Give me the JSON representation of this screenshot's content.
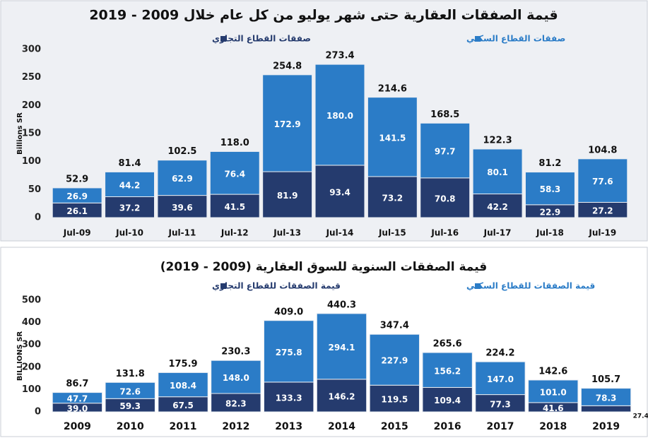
{
  "chart_data": [
    {
      "type": "stacked_bar",
      "title": "قيمة الصفقات العقارية حتى شهر يوليو من كل عام خلال 2009 - 2019",
      "y_label": "Billions SR",
      "categories": [
        "Jul-09",
        "Jul-10",
        "Jul-11",
        "Jul-12",
        "Jul-13",
        "Jul-14",
        "Jul-15",
        "Jul-16",
        "Jul-17",
        "Jul-18",
        "Jul-19"
      ],
      "series": [
        {
          "name": "صفقات القطاع التجاري",
          "color": "#253b6e",
          "values": [
            26.1,
            37.2,
            39.6,
            41.5,
            81.9,
            93.4,
            73.2,
            70.8,
            42.2,
            22.9,
            27.2
          ],
          "value_labels": [
            "26.1",
            "37.2",
            "39.6",
            "41.5",
            "81.9",
            "93.4",
            "73.2",
            "70.8",
            "42.2",
            "22.9",
            "27.2"
          ]
        },
        {
          "name": "صفقات القطاع السكني",
          "color": "#2b7cc7",
          "values": [
            26.9,
            44.2,
            62.9,
            76.4,
            172.9,
            180.0,
            141.5,
            97.7,
            80.1,
            58.3,
            77.6
          ],
          "value_labels": [
            "26.9",
            "44.2",
            "62.9",
            "76.4",
            "172.9",
            "180.0",
            "141.5",
            "97.7",
            "80.1",
            "58.3",
            "77.6"
          ]
        }
      ],
      "totals": {
        "values": [
          52.9,
          81.4,
          102.5,
          118.0,
          254.8,
          273.4,
          214.6,
          168.5,
          122.3,
          81.2,
          104.8
        ],
        "value_labels": [
          "52.9",
          "81.4",
          "102.5",
          "118.0",
          "254.8",
          "273.4",
          "214.6",
          "168.5",
          "122.3",
          "81.2",
          "104.8"
        ]
      },
      "ylim": [
        0,
        300
      ],
      "yticks": [
        0,
        50,
        100,
        150,
        200,
        250,
        300
      ]
    },
    {
      "type": "stacked_bar",
      "title": "قيمة الصفقات السنوية للسوق العقارية (2009 - 2019)",
      "y_label": "BILLIONS SR",
      "categories": [
        "2009",
        "2010",
        "2011",
        "2012",
        "2013",
        "2014",
        "2015",
        "2016",
        "2017",
        "2018",
        "2019"
      ],
      "series": [
        {
          "name": "قيمة الصفقات للقطاع التجاري",
          "color": "#253b6e",
          "values": [
            39.0,
            59.3,
            67.5,
            82.3,
            133.3,
            146.2,
            119.5,
            109.4,
            77.3,
            41.6,
            27.4
          ],
          "value_labels": [
            "39.0",
            "59.3",
            "67.5",
            "82.3",
            "133.3",
            "146.2",
            "119.5",
            "109.4",
            "77.3",
            "41.6",
            "27.4"
          ]
        },
        {
          "name": "قيمة الصفقات للقطاع السكني",
          "color": "#2b7cc7",
          "values": [
            47.7,
            72.6,
            108.4,
            148.0,
            275.8,
            294.1,
            227.9,
            156.2,
            147.0,
            101.0,
            78.3
          ],
          "value_labels": [
            "47.7",
            "72.6",
            "108.4",
            "148.0",
            "275.8",
            "294.1",
            "227.9",
            "156.2",
            "147.0",
            "101.0",
            "78.3"
          ]
        }
      ],
      "totals": {
        "values": [
          86.7,
          131.8,
          175.9,
          230.3,
          409.0,
          440.3,
          347.4,
          265.6,
          224.2,
          142.6,
          105.7
        ],
        "value_labels": [
          "86.7",
          "131.8",
          "175.9",
          "230.3",
          "409.0",
          "440.3",
          "347.4",
          "265.6",
          "224.2",
          "142.6",
          "105.7"
        ]
      },
      "ylim": [
        0,
        500
      ],
      "yticks": [
        0,
        100,
        200,
        300,
        400,
        500
      ]
    }
  ]
}
